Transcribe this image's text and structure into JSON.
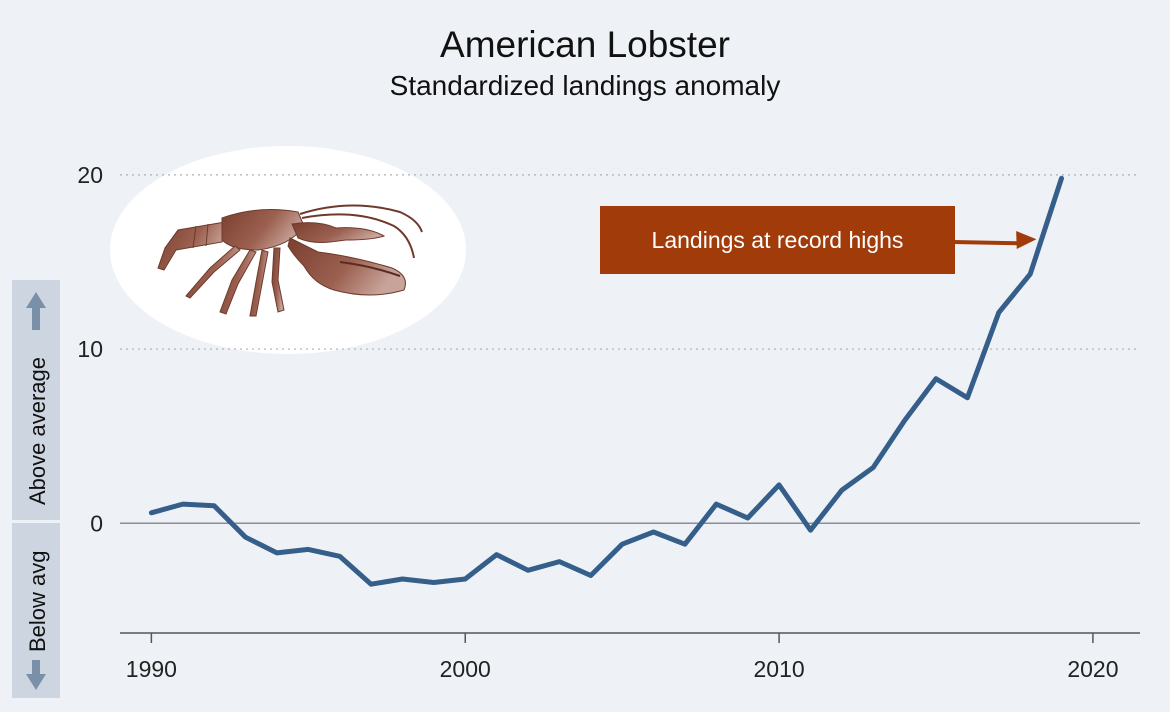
{
  "colors": {
    "background": "#eef2f6",
    "line": "#355f8a",
    "annotation_box": "#a13c0a",
    "gutter": "#cdd6e0",
    "gutter_arrow": "#7a90a8"
  },
  "side_labels": {
    "above": "Above average",
    "below": "Below avg"
  },
  "icon": "lobster-icon",
  "chart_data": {
    "type": "line",
    "title": "American Lobster",
    "subtitle": "Standardized landings anomaly",
    "xlabel": "",
    "ylabel": "",
    "xlim": [
      1989,
      2021.5
    ],
    "ylim": [
      -6.3,
      22
    ],
    "xticks": [
      1990,
      2000,
      2010,
      2020
    ],
    "yticks": [
      0,
      10,
      20
    ],
    "grid": "horizontal dotted at 10 and 20",
    "legend": "none",
    "series": [
      {
        "x": [
          1990,
          1991,
          1992,
          1993,
          1994,
          1995,
          1996,
          1997,
          1998,
          1999,
          2000,
          2001,
          2002,
          2003,
          2004,
          2005,
          2006,
          2007,
          2008,
          2009,
          2010,
          2011,
          2012,
          2013,
          2014,
          2015,
          2016,
          2017,
          2018,
          2019
        ],
        "values": [
          0.6,
          1.1,
          1.0,
          -0.8,
          -1.7,
          -1.5,
          -1.9,
          -3.5,
          -3.2,
          -3.4,
          -3.2,
          -1.8,
          -2.7,
          -2.2,
          -3.0,
          -1.2,
          -0.5,
          -1.2,
          1.1,
          0.3,
          2.2,
          -0.4,
          1.9,
          3.2,
          5.9,
          8.3,
          7.2,
          12.1,
          14.3,
          19.8
        ]
      }
    ],
    "annotations": [
      {
        "text": "Landings at record highs",
        "points_to": [
          2018.2,
          16.3
        ]
      }
    ]
  }
}
